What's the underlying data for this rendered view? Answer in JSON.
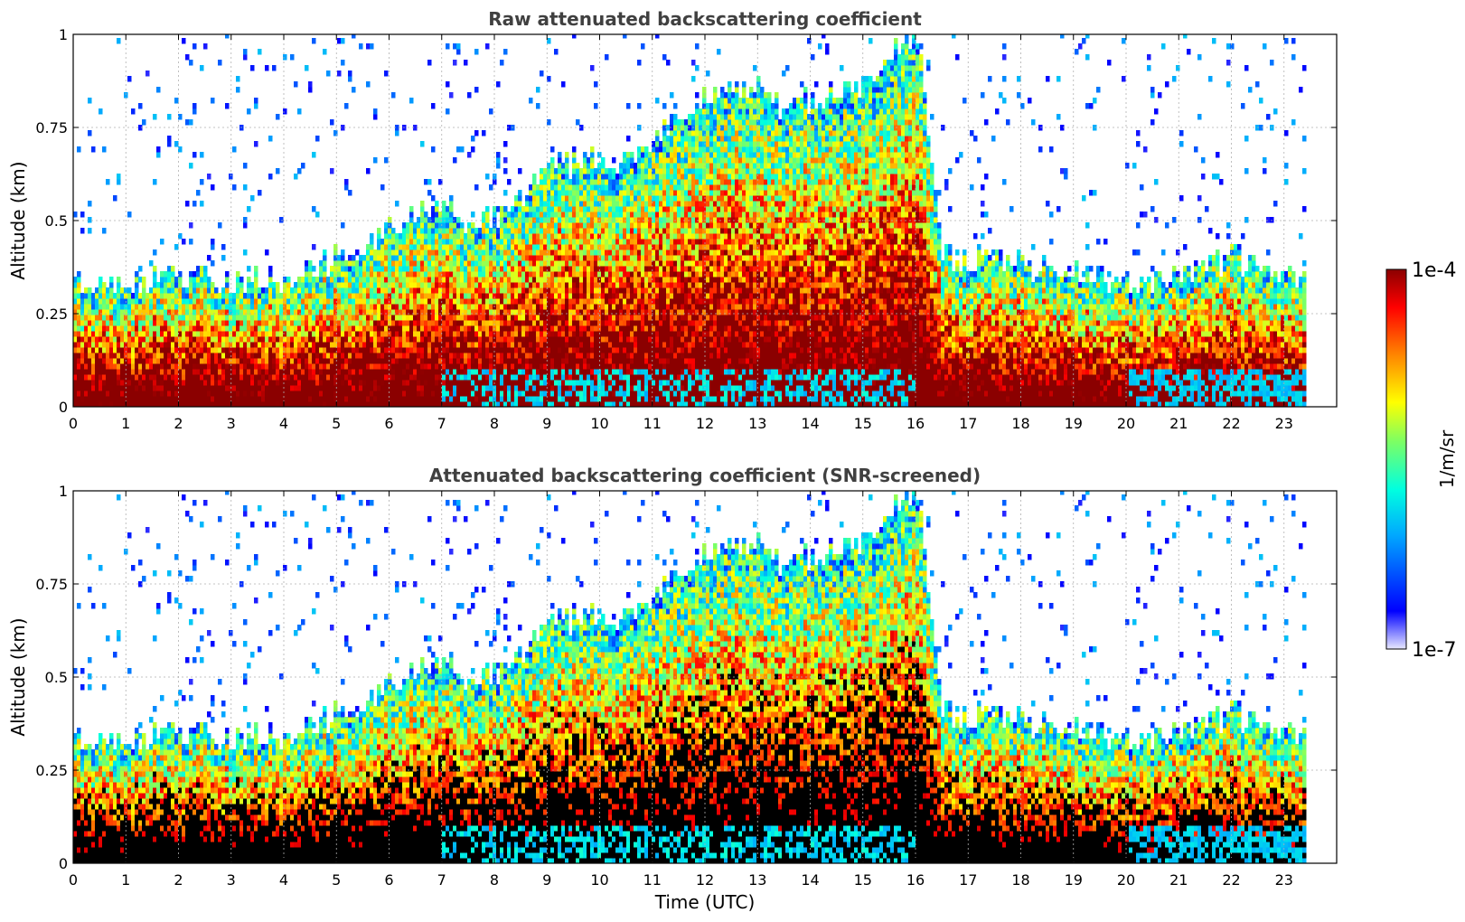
{
  "chart_data": [
    {
      "type": "heatmap",
      "title": "Raw attenuated backscattering coefficient",
      "xlabel": "",
      "ylabel": "Altitude (km)",
      "xlim": [
        0,
        24
      ],
      "ylim": [
        0,
        1
      ],
      "x_ticks": [
        "0",
        "1",
        "2",
        "3",
        "4",
        "5",
        "6",
        "7",
        "8",
        "9",
        "10",
        "11",
        "12",
        "13",
        "14",
        "15",
        "16",
        "17",
        "18",
        "19",
        "20",
        "21",
        "22",
        "23"
      ],
      "y_ticks": [
        "0",
        "0.25",
        "0.5",
        "0.75",
        "1"
      ],
      "grid": true,
      "data_end_hour": 23.45,
      "profile_hours": [
        0,
        1,
        2,
        3,
        4,
        5,
        6,
        6.5,
        7,
        7.5,
        8,
        9,
        10,
        11,
        11.5,
        12,
        12.5,
        13,
        13.5,
        14,
        14.5,
        15,
        15.5,
        16,
        16.5,
        17,
        17.5,
        18,
        19,
        20,
        21,
        22,
        22.5,
        23,
        23.45
      ],
      "boundary_layer_top_km": [
        0.33,
        0.34,
        0.35,
        0.33,
        0.35,
        0.4,
        0.47,
        0.52,
        0.54,
        0.5,
        0.5,
        0.65,
        0.66,
        0.7,
        0.78,
        0.85,
        0.88,
        0.85,
        0.8,
        0.82,
        0.85,
        0.88,
        0.95,
        1.0,
        0.4,
        0.4,
        0.4,
        0.38,
        0.36,
        0.33,
        0.35,
        0.4,
        0.38,
        0.36,
        0.35
      ]
    },
    {
      "type": "heatmap",
      "title": "Attenuated backscattering coefficient (SNR-screened)",
      "xlabel": "Time (UTC)",
      "ylabel": "Altitude (km)",
      "xlim": [
        0,
        24
      ],
      "ylim": [
        0,
        1
      ],
      "x_ticks": [
        "0",
        "1",
        "2",
        "3",
        "4",
        "5",
        "6",
        "7",
        "8",
        "9",
        "10",
        "11",
        "12",
        "13",
        "14",
        "15",
        "16",
        "17",
        "18",
        "19",
        "20",
        "21",
        "22",
        "23"
      ],
      "y_ticks": [
        "0",
        "0.25",
        "0.5",
        "0.75",
        "1"
      ],
      "grid": true,
      "data_end_hour": 23.45,
      "saturated_color": "#000000"
    }
  ],
  "colorbar": {
    "label": "1/m/sr",
    "max_label": "1e-4",
    "min_label": "1e-7",
    "scale": "log",
    "range": [
      1e-07,
      0.0001
    ],
    "colormap": [
      "#e8e8ff",
      "#0000ff",
      "#00a8ff",
      "#00ffe0",
      "#80ff60",
      "#ffff00",
      "#ff8000",
      "#ff0000",
      "#8b0000"
    ]
  }
}
